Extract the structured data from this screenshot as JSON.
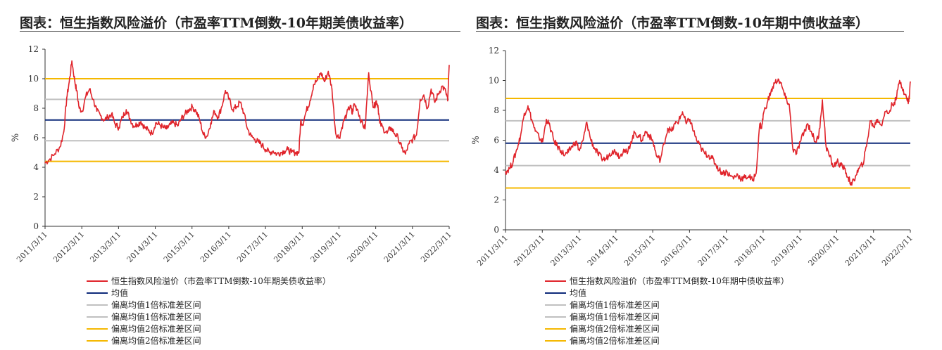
{
  "chart_data": [
    {
      "type": "line",
      "title": "图表：恒生指数风险溢价（市盈率TTM倒数-10年期美债收益率）",
      "ylabel": "%",
      "ylim": [
        0,
        12
      ],
      "yticks": [
        "0",
        "2",
        "4",
        "6",
        "8",
        "10",
        "12"
      ],
      "xticks": [
        "2011/3/11",
        "2012/3/11",
        "2013/3/11",
        "2014/3/11",
        "2015/3/11",
        "2016/3/11",
        "2017/3/11",
        "2018/3/11",
        "2019/3/11",
        "2020/3/11",
        "2021/3/11",
        "2022/3/11"
      ],
      "xlim": [
        2011.19,
        2022.19
      ],
      "grid": false,
      "legend_position": "bottom",
      "series": [
        {
          "name": "恒生指数风险溢价（市盈率TTM倒数-10年期美债收益率）",
          "color": "#e0242b",
          "x": [
            2011.19,
            2011.3,
            2011.45,
            2011.6,
            2011.7,
            2011.78,
            2011.85,
            2011.92,
            2012.0,
            2012.05,
            2012.12,
            2012.2,
            2012.3,
            2012.4,
            2012.5,
            2012.6,
            2012.7,
            2012.8,
            2012.9,
            2013.0,
            2013.1,
            2013.2,
            2013.3,
            2013.4,
            2013.5,
            2013.6,
            2013.7,
            2013.8,
            2013.9,
            2014.0,
            2014.1,
            2014.2,
            2014.3,
            2014.4,
            2014.5,
            2014.6,
            2014.7,
            2014.8,
            2014.9,
            2015.0,
            2015.1,
            2015.2,
            2015.3,
            2015.4,
            2015.5,
            2015.6,
            2015.7,
            2015.8,
            2015.9,
            2016.0,
            2016.1,
            2016.2,
            2016.3,
            2016.4,
            2016.5,
            2016.6,
            2016.7,
            2016.8,
            2016.9,
            2017.0,
            2017.1,
            2017.2,
            2017.3,
            2017.4,
            2017.5,
            2017.6,
            2017.7,
            2017.8,
            2017.9,
            2018.0,
            2018.1,
            2018.15,
            2018.2,
            2018.3,
            2018.4,
            2018.5,
            2018.6,
            2018.7,
            2018.8,
            2018.9,
            2019.0,
            2019.1,
            2019.2,
            2019.3,
            2019.4,
            2019.5,
            2019.55,
            2019.6,
            2019.7,
            2019.8,
            2019.9,
            2020.0,
            2020.1,
            2020.15,
            2020.2,
            2020.25,
            2020.3,
            2020.4,
            2020.5,
            2020.6,
            2020.7,
            2020.8,
            2020.9,
            2021.0,
            2021.1,
            2021.2,
            2021.3,
            2021.4,
            2021.5,
            2021.6,
            2021.7,
            2021.8,
            2021.9,
            2022.0,
            2022.1,
            2022.15,
            2022.19
          ],
          "y": [
            4.3,
            4.5,
            4.9,
            5.4,
            6.4,
            8.7,
            9.8,
            11.2,
            9.8,
            9.2,
            8.0,
            7.8,
            8.8,
            9.3,
            8.6,
            7.8,
            7.5,
            7.2,
            7.4,
            7.6,
            6.9,
            6.7,
            7.4,
            7.9,
            7.3,
            6.8,
            6.9,
            7.1,
            6.7,
            6.5,
            6.3,
            7.0,
            6.9,
            6.7,
            6.6,
            6.9,
            7.0,
            6.8,
            7.3,
            7.6,
            7.9,
            8.1,
            7.8,
            7.2,
            6.2,
            6.1,
            7.0,
            7.8,
            7.4,
            8.1,
            9.2,
            8.6,
            7.9,
            8.1,
            8.4,
            7.7,
            6.6,
            6.1,
            5.9,
            5.7,
            5.5,
            5.2,
            5.0,
            5.1,
            4.9,
            5.0,
            5.1,
            5.2,
            5.0,
            5.0,
            5.0,
            7.2,
            6.9,
            7.8,
            8.5,
            9.6,
            9.9,
            10.4,
            9.8,
            10.5,
            9.3,
            6.3,
            6.0,
            7.0,
            7.6,
            8.2,
            7.6,
            8.3,
            7.9,
            7.1,
            6.6,
            10.4,
            8.4,
            8.1,
            8.5,
            8.2,
            7.0,
            6.6,
            6.3,
            6.7,
            6.3,
            6.0,
            5.3,
            4.9,
            5.6,
            5.9,
            6.2,
            8.6,
            8.9,
            8.0,
            9.3,
            8.4,
            9.0,
            9.5,
            9.1,
            8.5,
            10.9
          ]
        },
        {
          "name": "均值",
          "color": "#0e2a7a",
          "value": 7.2
        },
        {
          "name": "偏离均值1倍标准差区间",
          "color": "#c0c0c0",
          "value": 8.6
        },
        {
          "name": "偏离均值1倍标准差区间",
          "color": "#c0c0c0",
          "value": 5.8
        },
        {
          "name": "偏离均值2倍标准差区间",
          "color": "#f5b800",
          "value": 10.0
        },
        {
          "name": "偏离均值2倍标准差区间",
          "color": "#f5b800",
          "value": 4.4
        }
      ]
    },
    {
      "type": "line",
      "title": "图表：恒生指数风险溢价（市盈率TTM倒数-10年期中债收益率）",
      "ylabel": "%",
      "ylim": [
        0,
        12
      ],
      "yticks": [
        "0",
        "2",
        "4",
        "6",
        "8",
        "10",
        "12"
      ],
      "xticks": [
        "2011/3/11",
        "2012/3/11",
        "2013/3/11",
        "2014/3/11",
        "2015/3/11",
        "2016/3/11",
        "2017/3/11",
        "2018/3/11",
        "2019/3/11",
        "2020/3/11",
        "2021/3/11",
        "2022/3/11"
      ],
      "xlim": [
        2011.19,
        2022.19
      ],
      "grid": false,
      "legend_position": "bottom",
      "series": [
        {
          "name": "恒生指数风险溢价（市盈率TTM倒数-10年期中债收益率）",
          "color": "#e0242b",
          "x": [
            2011.19,
            2011.3,
            2011.4,
            2011.5,
            2011.6,
            2011.7,
            2011.8,
            2011.9,
            2012.0,
            2012.1,
            2012.2,
            2012.3,
            2012.4,
            2012.5,
            2012.6,
            2012.7,
            2012.8,
            2012.9,
            2013.0,
            2013.1,
            2013.2,
            2013.3,
            2013.4,
            2013.5,
            2013.6,
            2013.7,
            2013.8,
            2013.9,
            2014.0,
            2014.1,
            2014.2,
            2014.3,
            2014.4,
            2014.5,
            2014.6,
            2014.7,
            2014.8,
            2014.9,
            2015.0,
            2015.1,
            2015.2,
            2015.3,
            2015.4,
            2015.5,
            2015.6,
            2015.7,
            2015.8,
            2015.9,
            2016.0,
            2016.1,
            2016.2,
            2016.3,
            2016.4,
            2016.5,
            2016.6,
            2016.7,
            2016.8,
            2016.9,
            2017.0,
            2017.1,
            2017.2,
            2017.3,
            2017.4,
            2017.5,
            2017.6,
            2017.7,
            2017.8,
            2017.9,
            2018.0,
            2018.1,
            2018.15,
            2018.2,
            2018.3,
            2018.4,
            2018.5,
            2018.6,
            2018.7,
            2018.8,
            2018.9,
            2019.0,
            2019.1,
            2019.2,
            2019.3,
            2019.4,
            2019.5,
            2019.6,
            2019.7,
            2019.8,
            2019.9,
            2020.0,
            2020.1,
            2020.2,
            2020.3,
            2020.4,
            2020.5,
            2020.6,
            2020.7,
            2020.8,
            2020.9,
            2021.0,
            2021.1,
            2021.2,
            2021.3,
            2021.4,
            2021.5,
            2021.6,
            2021.7,
            2021.8,
            2021.9,
            2022.0,
            2022.1,
            2022.15,
            2022.19
          ],
          "y": [
            3.9,
            4.1,
            4.6,
            5.4,
            6.3,
            7.8,
            8.3,
            7.4,
            6.6,
            6.2,
            5.9,
            7.4,
            6.9,
            6.0,
            5.6,
            5.3,
            5.0,
            5.2,
            5.6,
            5.9,
            5.3,
            6.0,
            7.2,
            6.1,
            5.5,
            5.1,
            4.8,
            4.7,
            5.0,
            5.3,
            5.2,
            4.9,
            5.4,
            5.1,
            5.9,
            6.5,
            6.3,
            6.0,
            6.6,
            6.3,
            5.9,
            4.9,
            4.7,
            5.8,
            6.8,
            6.6,
            7.1,
            7.3,
            7.9,
            7.1,
            7.4,
            6.6,
            5.9,
            5.5,
            5.1,
            5.0,
            4.8,
            4.4,
            4.0,
            3.8,
            3.9,
            3.6,
            3.5,
            3.7,
            3.4,
            3.5,
            3.6,
            3.3,
            3.8,
            7.1,
            6.8,
            7.8,
            8.5,
            9.2,
            9.8,
            10.1,
            9.6,
            8.8,
            8.4,
            5.4,
            5.1,
            5.9,
            6.5,
            7.1,
            6.6,
            5.9,
            6.2,
            8.7,
            5.6,
            4.9,
            4.2,
            4.6,
            4.3,
            4.1,
            3.5,
            3.0,
            3.6,
            4.1,
            4.4,
            5.6,
            7.3,
            6.9,
            7.4,
            7.0,
            7.9,
            7.8,
            8.4,
            8.7,
            10.0,
            9.4,
            8.7,
            8.6,
            9.9
          ]
        },
        {
          "name": "均值",
          "color": "#0e2a7a",
          "value": 5.8
        },
        {
          "name": "偏离均值1倍标准差区间",
          "color": "#c0c0c0",
          "value": 7.3
        },
        {
          "name": "偏离均值1倍标准差区间",
          "color": "#c0c0c0",
          "value": 4.3
        },
        {
          "name": "偏离均值2倍标准差区间",
          "color": "#f5b800",
          "value": 8.8
        },
        {
          "name": "偏离均值2倍标准差区间",
          "color": "#f5b800",
          "value": 2.8
        }
      ]
    }
  ]
}
